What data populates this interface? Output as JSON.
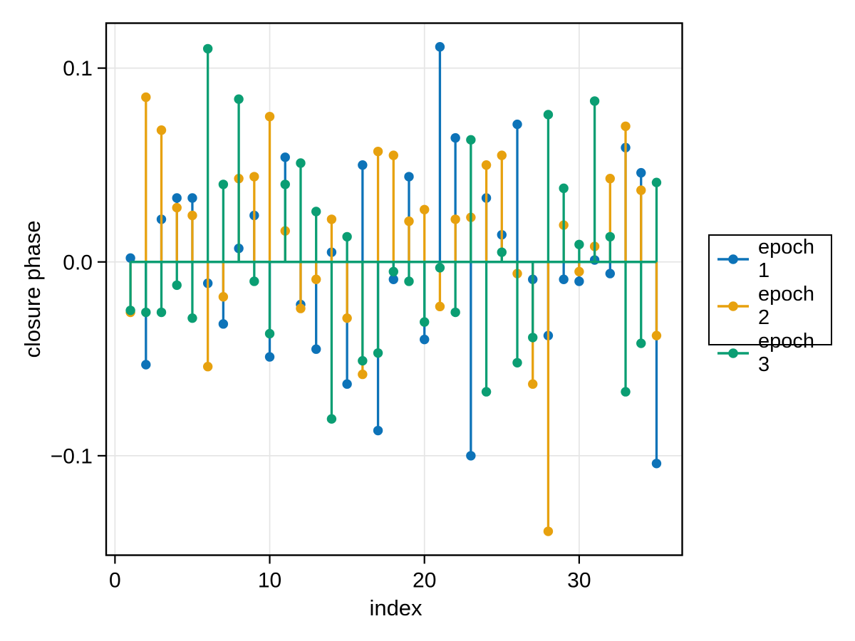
{
  "background": "#ffffff",
  "chart_data": {
    "type": "stem",
    "title": "",
    "xlabel": "index",
    "ylabel": "closure phase",
    "xlim": [
      -0.57,
      36.66
    ],
    "ylim": [
      -0.1513,
      0.1232
    ],
    "grid": true,
    "legend_position": "right-outside",
    "baseline": 0,
    "x_ticks": [
      {
        "value": 0,
        "label": "0"
      },
      {
        "value": 10,
        "label": "10"
      },
      {
        "value": 20,
        "label": "20"
      },
      {
        "value": 30,
        "label": "30"
      }
    ],
    "y_ticks": [
      {
        "value": 0.1,
        "label": "0.1"
      },
      {
        "value": 0.0,
        "label": "0.0"
      },
      {
        "value": -0.1,
        "label": "−0.1"
      }
    ],
    "x": [
      1,
      2,
      3,
      4,
      5,
      6,
      7,
      8,
      9,
      10,
      11,
      12,
      13,
      14,
      15,
      16,
      17,
      18,
      19,
      20,
      21,
      22,
      23,
      24,
      25,
      26,
      27,
      28,
      29,
      30,
      31,
      32,
      33,
      34,
      35
    ],
    "series": [
      {
        "name": "epoch 1",
        "color": "#0D73B8",
        "values": [
          0.002,
          -0.053,
          0.022,
          0.033,
          0.033,
          -0.011,
          -0.032,
          0.007,
          0.024,
          -0.049,
          0.054,
          -0.022,
          -0.045,
          0.005,
          -0.063,
          0.05,
          -0.087,
          -0.009,
          0.044,
          -0.04,
          0.111,
          0.064,
          -0.1,
          0.033,
          0.014,
          0.071,
          -0.009,
          -0.038,
          -0.009,
          -0.01,
          0.001,
          -0.006,
          0.059,
          0.046,
          -0.104
        ]
      },
      {
        "name": "epoch 2",
        "color": "#E7A10E",
        "values": [
          -0.026,
          0.085,
          0.068,
          0.028,
          0.024,
          -0.054,
          -0.018,
          0.043,
          0.044,
          0.075,
          0.016,
          -0.024,
          -0.009,
          0.022,
          -0.029,
          -0.058,
          0.057,
          0.055,
          0.021,
          0.027,
          -0.023,
          0.022,
          0.023,
          0.05,
          0.055,
          -0.006,
          -0.063,
          -0.139,
          0.019,
          -0.005,
          0.008,
          0.043,
          0.07,
          0.037,
          -0.038
        ]
      },
      {
        "name": "epoch 3",
        "color": "#0B9E73",
        "values": [
          -0.025,
          -0.026,
          -0.026,
          -0.012,
          -0.029,
          0.11,
          0.04,
          0.084,
          -0.01,
          -0.037,
          0.04,
          0.051,
          0.026,
          -0.081,
          0.013,
          -0.051,
          -0.047,
          -0.005,
          -0.01,
          -0.031,
          -0.003,
          -0.026,
          0.063,
          -0.067,
          0.005,
          -0.052,
          -0.039,
          0.076,
          0.038,
          0.009,
          0.083,
          0.013,
          -0.067,
          -0.042,
          0.041
        ]
      }
    ],
    "style": {
      "grid_color": "#E5E5E5",
      "frame_color": "#000000",
      "marker_radius": 6.7,
      "stem_width": 3.3
    }
  }
}
